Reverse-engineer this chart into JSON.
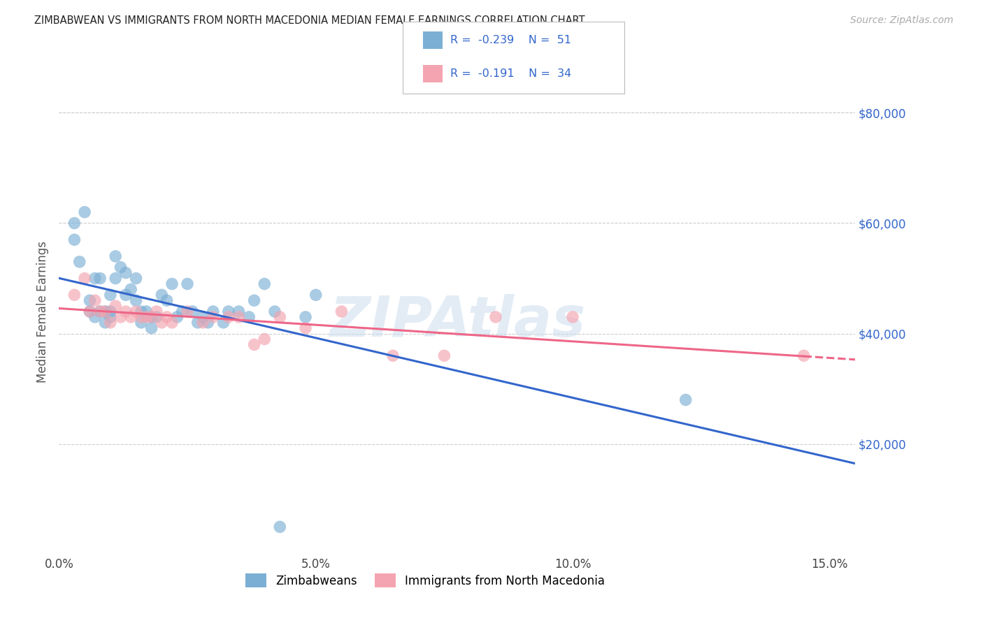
{
  "title": "ZIMBABWEAN VS IMMIGRANTS FROM NORTH MACEDONIA MEDIAN FEMALE EARNINGS CORRELATION CHART",
  "source": "Source: ZipAtlas.com",
  "ylabel": "Median Female Earnings",
  "xlabel_ticks": [
    "0.0%",
    "5.0%",
    "10.0%",
    "15.0%"
  ],
  "xlabel_tick_vals": [
    0.0,
    0.05,
    0.1,
    0.15
  ],
  "ylabel_ticks": [
    "$20,000",
    "$40,000",
    "$60,000",
    "$80,000"
  ],
  "ylabel_tick_vals": [
    20000,
    40000,
    60000,
    80000
  ],
  "xlim": [
    0.0,
    0.155
  ],
  "ylim": [
    0,
    88000
  ],
  "legend1_R": "-0.239",
  "legend1_N": "51",
  "legend2_R": "-0.191",
  "legend2_N": "34",
  "legend1_label": "Zimbabweans",
  "legend2_label": "Immigrants from North Macedonia",
  "color_blue": "#7BAFD4",
  "color_pink": "#F4A4B0",
  "line_blue": "#3366CC",
  "line_pink": "#EE6688",
  "watermark": "ZIPAtlas",
  "zimbabwean_x": [
    0.003,
    0.003,
    0.004,
    0.005,
    0.006,
    0.006,
    0.007,
    0.007,
    0.008,
    0.008,
    0.009,
    0.009,
    0.01,
    0.01,
    0.01,
    0.011,
    0.011,
    0.012,
    0.013,
    0.013,
    0.014,
    0.015,
    0.015,
    0.016,
    0.016,
    0.017,
    0.018,
    0.018,
    0.019,
    0.02,
    0.021,
    0.022,
    0.023,
    0.024,
    0.025,
    0.026,
    0.027,
    0.028,
    0.029,
    0.03,
    0.032,
    0.033,
    0.035,
    0.037,
    0.038,
    0.04,
    0.042,
    0.048,
    0.05,
    0.122,
    0.043
  ],
  "zimbabwean_y": [
    57000,
    60000,
    53000,
    62000,
    46000,
    44000,
    50000,
    43000,
    50000,
    44000,
    44000,
    42000,
    47000,
    44000,
    43000,
    54000,
    50000,
    52000,
    51000,
    47000,
    48000,
    50000,
    46000,
    44000,
    42000,
    44000,
    43000,
    41000,
    43000,
    47000,
    46000,
    49000,
    43000,
    44000,
    49000,
    44000,
    42000,
    43000,
    42000,
    44000,
    42000,
    44000,
    44000,
    43000,
    46000,
    49000,
    44000,
    43000,
    47000,
    28000,
    5000
  ],
  "macedonia_x": [
    0.003,
    0.005,
    0.006,
    0.007,
    0.008,
    0.009,
    0.01,
    0.011,
    0.012,
    0.013,
    0.014,
    0.015,
    0.016,
    0.017,
    0.018,
    0.019,
    0.02,
    0.021,
    0.022,
    0.025,
    0.028,
    0.03,
    0.033,
    0.035,
    0.038,
    0.04,
    0.043,
    0.048,
    0.055,
    0.065,
    0.075,
    0.085,
    0.1,
    0.145
  ],
  "macedonia_y": [
    47000,
    50000,
    44000,
    46000,
    44000,
    44000,
    42000,
    45000,
    43000,
    44000,
    43000,
    44000,
    43000,
    43000,
    43000,
    44000,
    42000,
    43000,
    42000,
    44000,
    42000,
    43000,
    43000,
    43000,
    38000,
    39000,
    43000,
    41000,
    44000,
    36000,
    36000,
    43000,
    43000,
    36000
  ]
}
